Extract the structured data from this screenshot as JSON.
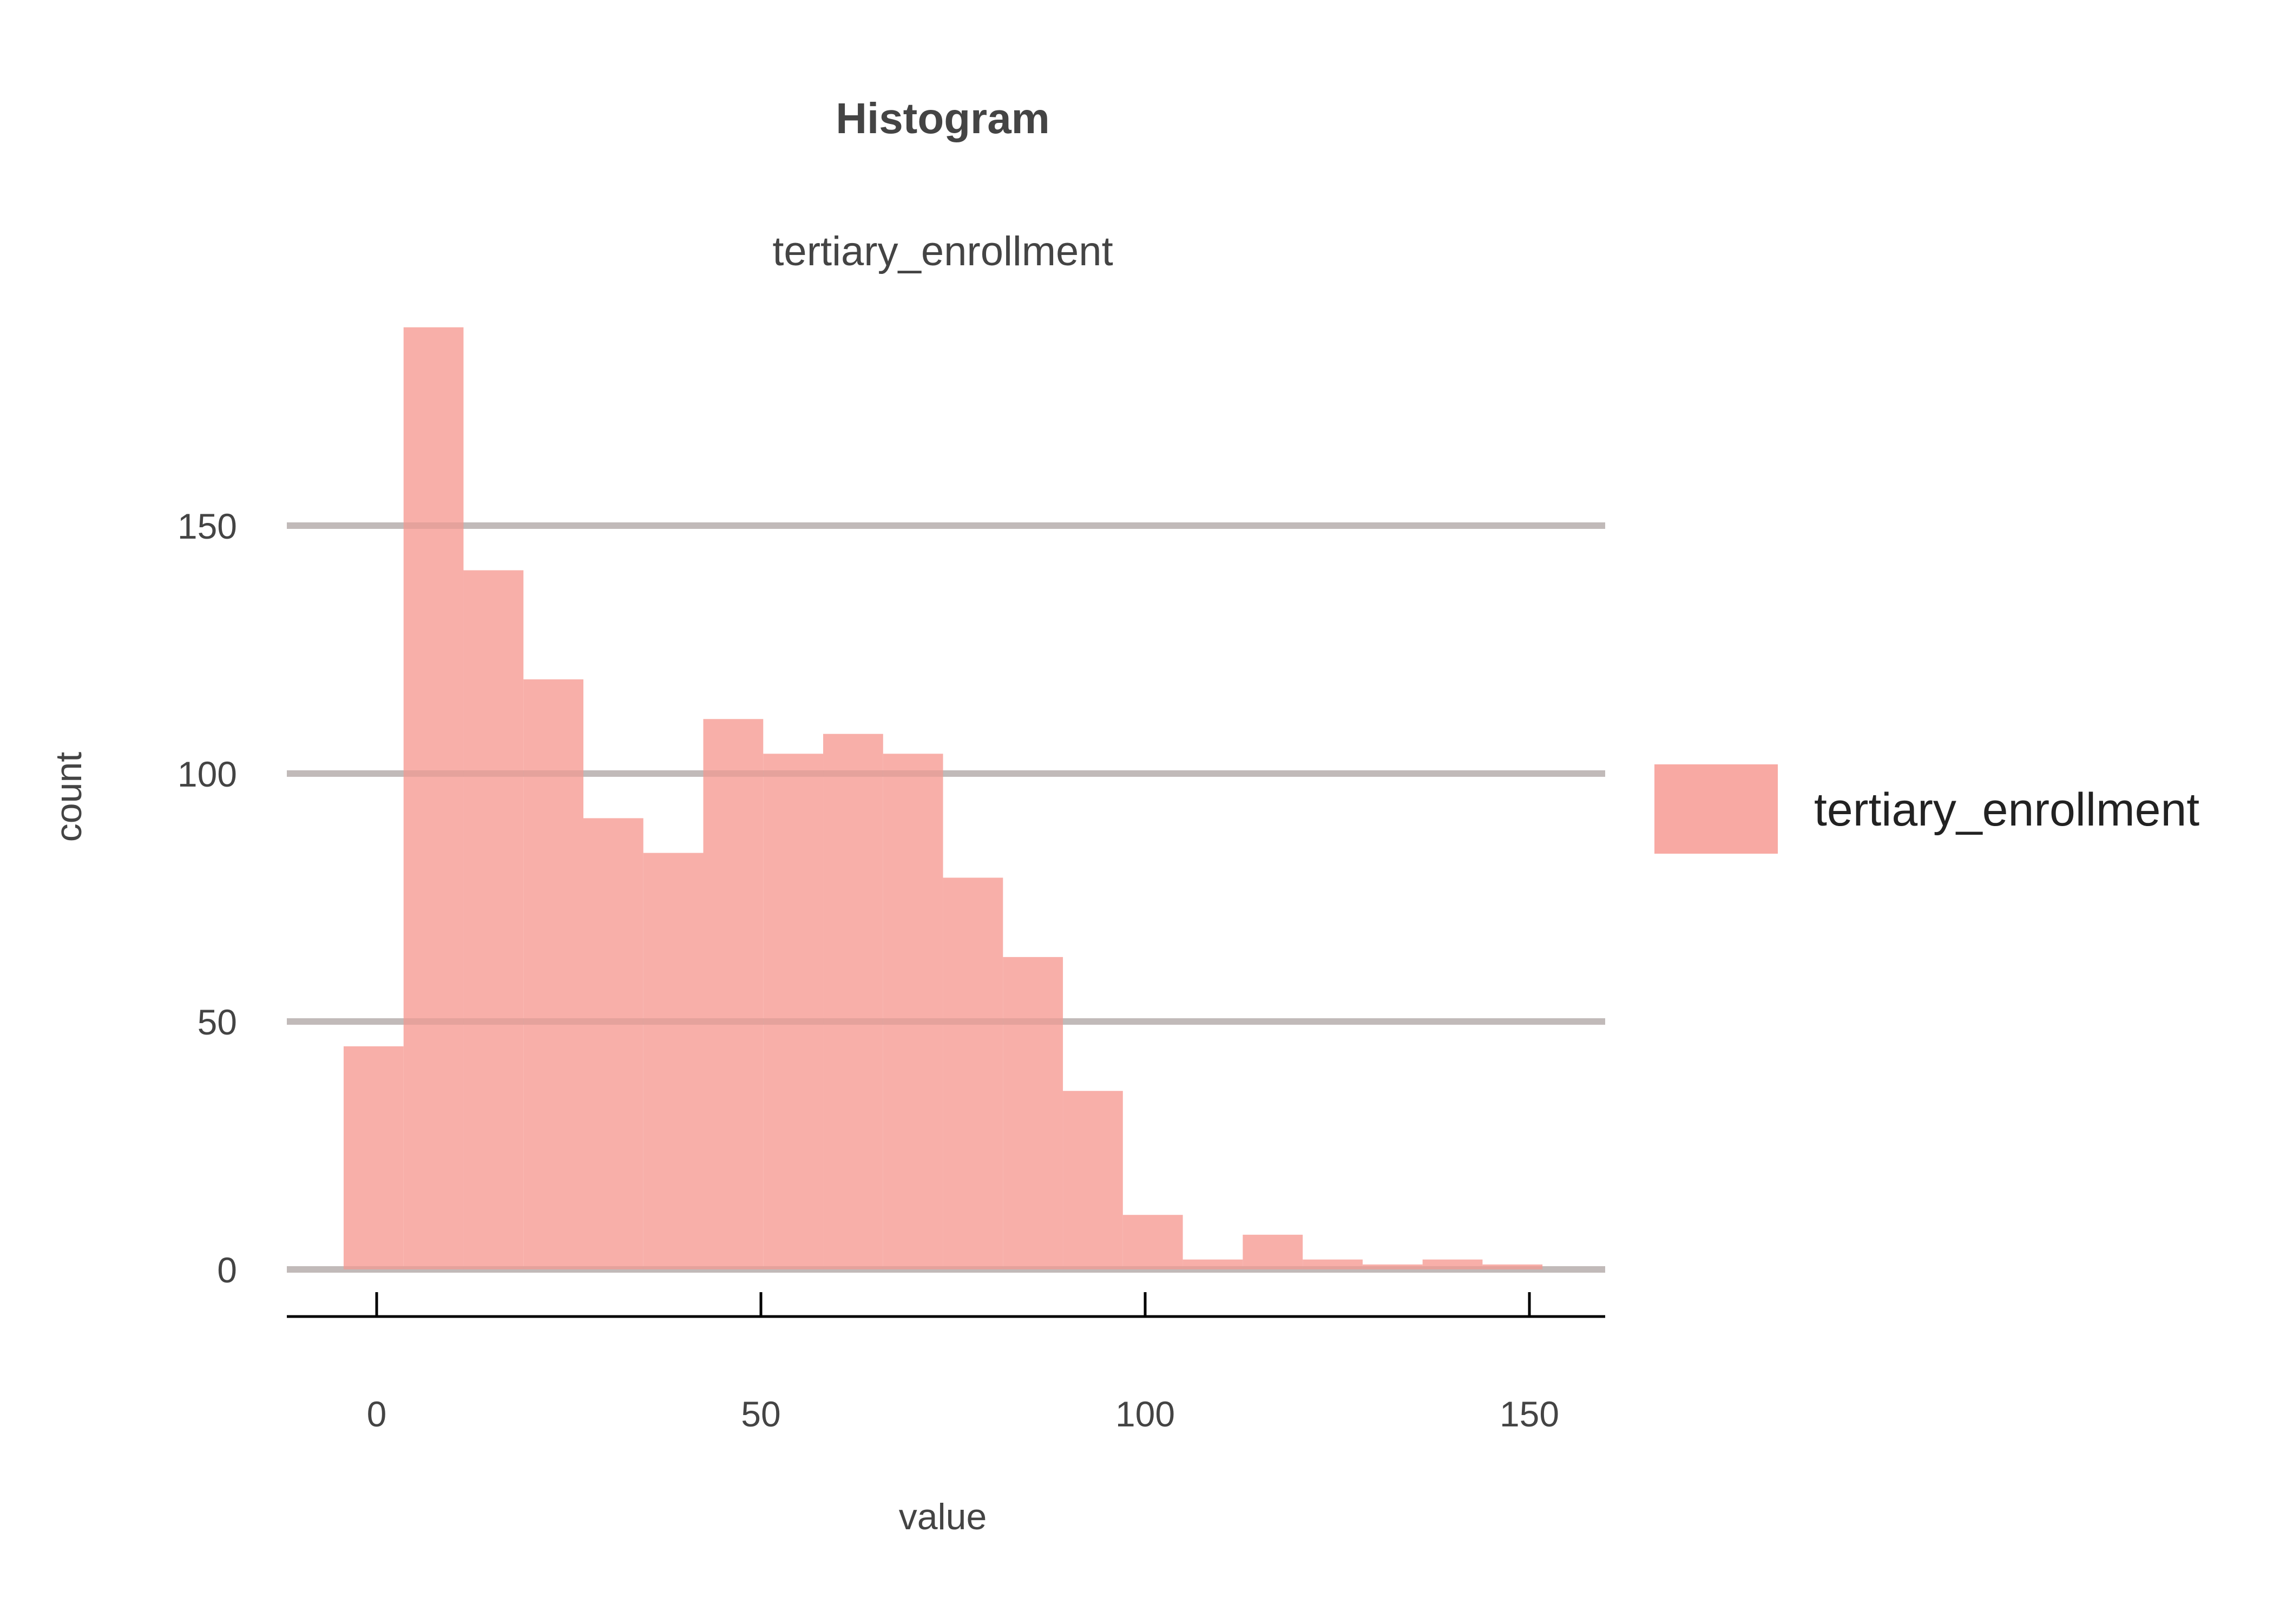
{
  "chart_data": {
    "type": "bar",
    "title": "Histogram",
    "subtitle": "tertiary_enrollment",
    "xlabel": "value",
    "ylabel": "count",
    "x_ticks": [
      0,
      50,
      100,
      150
    ],
    "y_ticks": [
      0,
      50,
      100,
      150
    ],
    "xlim": [
      -12,
      159
    ],
    "ylim": [
      -10,
      190
    ],
    "bin_width": 7.8,
    "grid": "horizontal",
    "legend": "right",
    "color": "#f8a9a3",
    "series": [
      {
        "name": "tertiary_enrollment",
        "bins": [
          {
            "x0": -4.3,
            "x1": 3.5,
            "count": 45
          },
          {
            "x0": 3.5,
            "x1": 11.3,
            "count": 190
          },
          {
            "x0": 11.3,
            "x1": 19.1,
            "count": 141
          },
          {
            "x0": 19.1,
            "x1": 26.9,
            "count": 119
          },
          {
            "x0": 26.9,
            "x1": 34.7,
            "count": 91
          },
          {
            "x0": 34.7,
            "x1": 42.5,
            "count": 84
          },
          {
            "x0": 42.5,
            "x1": 50.3,
            "count": 111
          },
          {
            "x0": 50.3,
            "x1": 58.1,
            "count": 104
          },
          {
            "x0": 58.1,
            "x1": 65.9,
            "count": 108
          },
          {
            "x0": 65.9,
            "x1": 73.7,
            "count": 104
          },
          {
            "x0": 73.7,
            "x1": 81.5,
            "count": 79
          },
          {
            "x0": 81.5,
            "x1": 89.3,
            "count": 63
          },
          {
            "x0": 89.3,
            "x1": 97.1,
            "count": 36
          },
          {
            "x0": 97.1,
            "x1": 104.9,
            "count": 11
          },
          {
            "x0": 104.9,
            "x1": 112.7,
            "count": 2
          },
          {
            "x0": 112.7,
            "x1": 120.5,
            "count": 7
          },
          {
            "x0": 120.5,
            "x1": 128.3,
            "count": 2
          },
          {
            "x0": 128.3,
            "x1": 136.1,
            "count": 1
          },
          {
            "x0": 136.1,
            "x1": 143.9,
            "count": 2
          },
          {
            "x0": 143.9,
            "x1": 151.7,
            "count": 1
          }
        ]
      }
    ]
  }
}
